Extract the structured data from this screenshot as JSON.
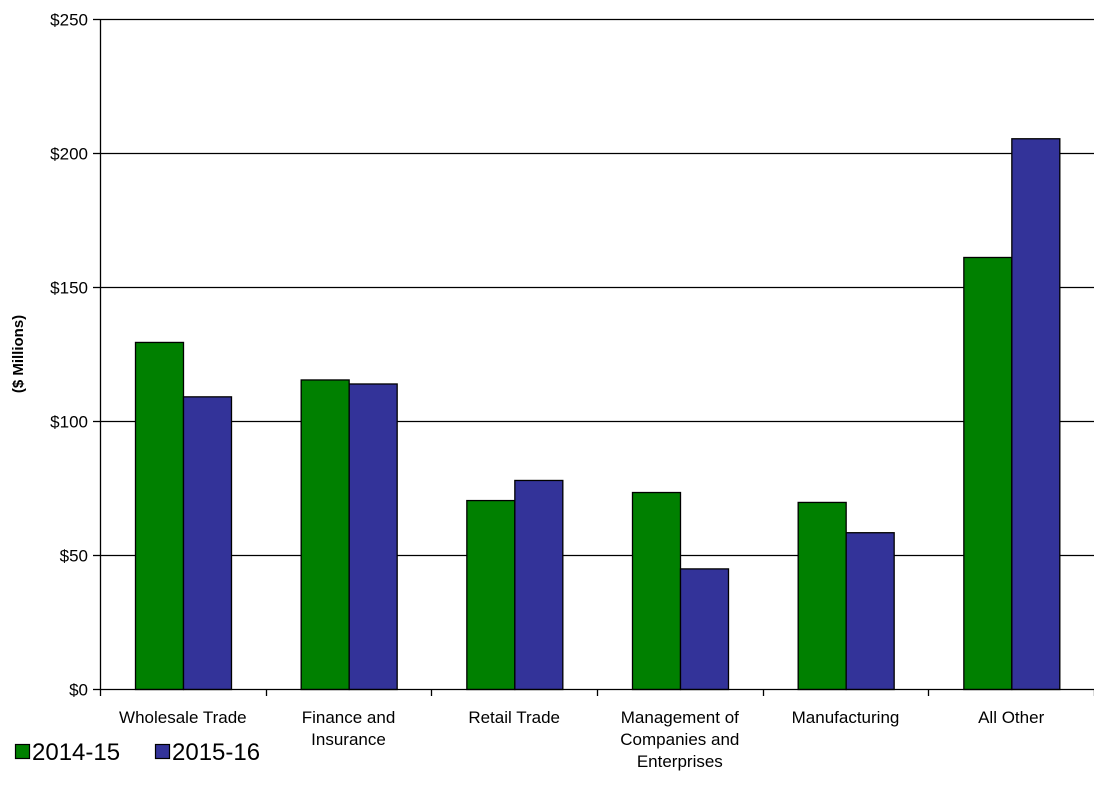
{
  "chart_data": {
    "type": "bar",
    "title": "",
    "xlabel": "",
    "ylabel": "($ Millions)",
    "ylim": [
      0,
      250
    ],
    "yticks": [
      0,
      50,
      100,
      150,
      200,
      250
    ],
    "ytick_labels": [
      "$0",
      "$50",
      "$100",
      "$150",
      "$200",
      "$250"
    ],
    "categories": [
      [
        "Wholesale Trade"
      ],
      [
        "Finance and",
        "Insurance"
      ],
      [
        "Retail Trade"
      ],
      [
        "Management of",
        "Companies and",
        "Enterprises"
      ],
      [
        "Manufacturing"
      ],
      [
        "All Other"
      ]
    ],
    "series": [
      {
        "name": "2014-15",
        "color": "#008000",
        "values": [
          129.5,
          115.5,
          70.5,
          73.5,
          69.8,
          161.2
        ]
      },
      {
        "name": "2015-16",
        "color": "#333399",
        "values": [
          109.2,
          114,
          78,
          45,
          58.5,
          205.5
        ]
      }
    ],
    "grid": true,
    "legend_position": "bottom-left"
  }
}
